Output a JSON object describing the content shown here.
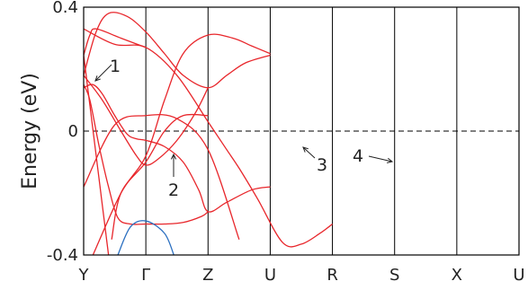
{
  "chart_data": {
    "type": "line",
    "ylabel": "Energy (eV)",
    "ylim": [
      -0.4,
      0.4
    ],
    "y_ticks": [
      {
        "value": 0.4,
        "label": "0.4"
      },
      {
        "value": 0,
        "label": "0"
      },
      {
        "value": -0.4,
        "label": "-0.4"
      }
    ],
    "k_points": [
      "Y",
      "Γ",
      "Z",
      "U",
      "R",
      "S",
      "X",
      "U"
    ],
    "fermi_level": {
      "value": 0,
      "style": "dashed"
    },
    "grid": "vertical lines at k-points",
    "line_colors": {
      "bands": "#e8262b",
      "lower_band": "#2b6fc0"
    },
    "series": [
      {
        "color": "#e8262b",
        "points": [
          [
            0,
            0.18
          ],
          [
            0.2,
            0.32
          ],
          [
            0.4,
            0.38
          ],
          [
            0.7,
            0.37
          ],
          [
            1.0,
            0.32
          ],
          [
            1.3,
            0.25
          ],
          [
            1.6,
            0.18
          ],
          [
            2.0,
            0.14
          ],
          [
            2.3,
            0.18
          ],
          [
            2.6,
            0.22
          ],
          [
            3.0,
            0.245
          ]
        ]
      },
      {
        "color": "#e8262b",
        "points": [
          [
            0,
            0.18
          ],
          [
            0.3,
            0.1
          ],
          [
            0.6,
            0.0
          ],
          [
            0.85,
            -0.08
          ],
          [
            1.0,
            -0.11
          ],
          [
            1.2,
            -0.09
          ],
          [
            1.5,
            -0.03
          ],
          [
            1.8,
            0.06
          ],
          [
            2.0,
            0.14
          ]
        ]
      },
      {
        "color": "#e8262b",
        "points": [
          [
            0,
            0.14
          ],
          [
            0.15,
            0.15
          ],
          [
            0.3,
            0.12
          ],
          [
            0.5,
            0.05
          ],
          [
            0.7,
            -0.01
          ],
          [
            0.85,
            -0.025
          ],
          [
            1.0,
            -0.03
          ],
          [
            1.3,
            -0.05
          ],
          [
            1.6,
            -0.1
          ],
          [
            1.85,
            -0.19
          ],
          [
            2.0,
            -0.26
          ],
          [
            2.3,
            -0.23
          ],
          [
            2.7,
            -0.19
          ],
          [
            3.0,
            -0.18
          ]
        ]
      },
      {
        "color": "#e8262b",
        "points": [
          [
            0,
            0.15
          ],
          [
            0.1,
            0.1
          ],
          [
            0.25,
            -0.05
          ],
          [
            0.4,
            -0.18
          ],
          [
            0.55,
            -0.28
          ],
          [
            0.75,
            -0.3
          ],
          [
            1.0,
            -0.3
          ],
          [
            1.3,
            -0.3
          ],
          [
            1.6,
            -0.295
          ],
          [
            1.9,
            -0.275
          ],
          [
            2.0,
            -0.26
          ]
        ]
      },
      {
        "color": "#e8262b",
        "points": [
          [
            0,
            0.245
          ],
          [
            0.4,
            -0.4
          ]
        ]
      },
      {
        "color": "#e8262b",
        "points": [
          [
            0,
            0.33
          ],
          [
            0.5,
            0.28
          ],
          [
            1.0,
            0.27
          ],
          [
            1.5,
            0.18
          ],
          [
            2.0,
            0.03
          ],
          [
            2.3,
            -0.06
          ],
          [
            2.5,
            -0.12
          ],
          [
            2.8,
            -0.22
          ],
          [
            3.2,
            -0.36
          ],
          [
            3.5,
            -0.365
          ],
          [
            3.8,
            -0.33
          ],
          [
            4.0,
            -0.3
          ]
        ]
      },
      {
        "color": "#e8262b",
        "points": [
          [
            0,
            0.245
          ],
          [
            0.1,
            0.31
          ],
          [
            0.2,
            0.33
          ],
          [
            0.6,
            0.3
          ],
          [
            1.0,
            0.27
          ]
        ]
      },
      {
        "color": "#e8262b",
        "points": [
          [
            0,
            -0.18
          ],
          [
            0.5,
            0.02
          ],
          [
            1.0,
            0.05
          ],
          [
            1.5,
            0.04
          ],
          [
            2.0,
            -0.06
          ],
          [
            2.5,
            -0.35
          ]
        ]
      },
      {
        "color": "#e8262b",
        "points": [
          [
            0.15,
            -0.4
          ],
          [
            0.6,
            -0.2
          ],
          [
            1.0,
            -0.08
          ],
          [
            1.3,
            0.1
          ],
          [
            1.6,
            0.25
          ],
          [
            2.0,
            0.31
          ],
          [
            2.4,
            0.3
          ],
          [
            2.7,
            0.275
          ],
          [
            3.0,
            0.25
          ]
        ]
      },
      {
        "color": "#e8262b",
        "points": [
          [
            0.45,
            -0.35
          ],
          [
            0.6,
            -0.2
          ],
          [
            1.0,
            -0.1
          ],
          [
            1.3,
            0.0
          ],
          [
            1.6,
            0.05
          ],
          [
            2.0,
            0.05
          ]
        ]
      },
      {
        "color": "#2b6fc0",
        "points": [
          [
            0.55,
            -0.4
          ],
          [
            0.75,
            -0.31
          ],
          [
            1.0,
            -0.29
          ],
          [
            1.3,
            -0.33
          ],
          [
            1.45,
            -0.4
          ]
        ]
      }
    ],
    "annotations": [
      {
        "label": "1",
        "target": [
          0.1,
          0.16
        ]
      },
      {
        "label": "2",
        "target": [
          1.45,
          -0.08
        ]
      },
      {
        "label": "3",
        "target": [
          4.95,
          -0.05
        ]
      },
      {
        "label": "4",
        "target": [
          5.0,
          -0.1
        ]
      }
    ]
  }
}
